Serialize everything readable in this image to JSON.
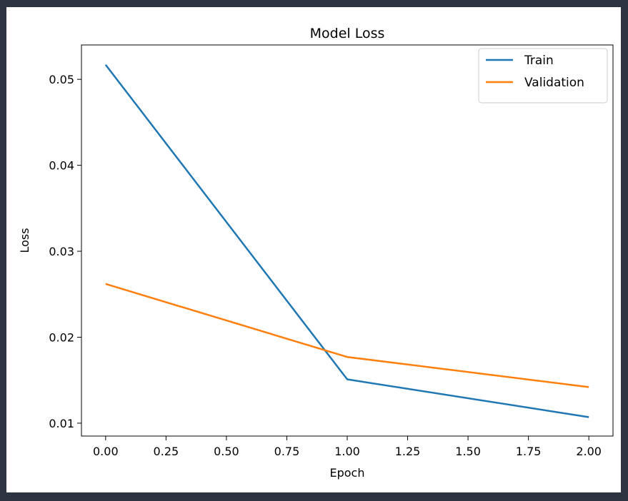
{
  "chart_data": {
    "type": "line",
    "title": "Model Loss",
    "xlabel": "Epoch",
    "ylabel": "Loss",
    "x": [
      0,
      1,
      2
    ],
    "xlim": [
      -0.1,
      2.1
    ],
    "ylim": [
      0.0085,
      0.054
    ],
    "xticks": [
      0,
      0.25,
      0.5,
      0.75,
      1.0,
      1.25,
      1.5,
      1.75,
      2.0
    ],
    "xtick_labels": [
      "0.00",
      "0.25",
      "0.50",
      "0.75",
      "1.00",
      "1.25",
      "1.50",
      "1.75",
      "2.00"
    ],
    "yticks": [
      0.01,
      0.02,
      0.03,
      0.04,
      0.05
    ],
    "ytick_labels": [
      "0.01",
      "0.02",
      "0.03",
      "0.04",
      "0.05"
    ],
    "series": [
      {
        "name": "Train",
        "values": [
          0.0517,
          0.0151,
          0.0107
        ],
        "color": "#1f77b4"
      },
      {
        "name": "Validation",
        "values": [
          0.0262,
          0.0177,
          0.0142
        ],
        "color": "#ff7f0e"
      }
    ],
    "grid": false,
    "legend_position": "top-right"
  }
}
